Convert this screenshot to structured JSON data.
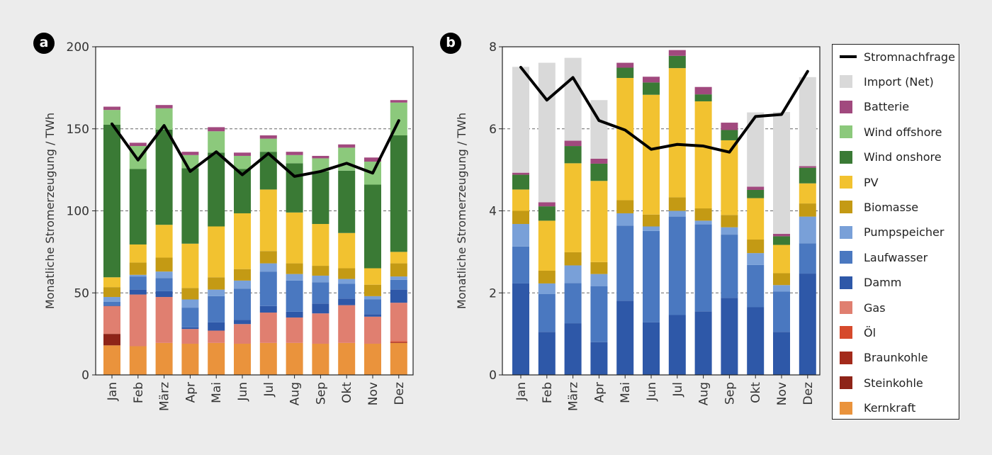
{
  "panels": [
    {
      "badge": "a"
    },
    {
      "badge": "b"
    }
  ],
  "legend": [
    {
      "key": "demand",
      "label": "Stromnachfrage",
      "type": "line",
      "color": "#000000"
    },
    {
      "key": "import",
      "label": "Import (Net)",
      "type": "swatch",
      "color": "#d9d9d9"
    },
    {
      "key": "batterie",
      "label": "Batterie",
      "type": "swatch",
      "color": "#a1497e"
    },
    {
      "key": "wind_offshore",
      "label": "Wind offshore",
      "type": "swatch",
      "color": "#8cc97c"
    },
    {
      "key": "wind_onshore",
      "label": "Wind onshore",
      "type": "swatch",
      "color": "#3a7a35"
    },
    {
      "key": "pv",
      "label": "PV",
      "type": "swatch",
      "color": "#f2c230"
    },
    {
      "key": "biomasse",
      "label": "Biomasse",
      "type": "swatch",
      "color": "#c49a14"
    },
    {
      "key": "pumpspeicher",
      "label": "Pumpspeicher",
      "type": "swatch",
      "color": "#79a0d8"
    },
    {
      "key": "laufwasser",
      "label": "Laufwasser",
      "type": "swatch",
      "color": "#4a78c0"
    },
    {
      "key": "damm",
      "label": "Damm",
      "type": "swatch",
      "color": "#2e58a8"
    },
    {
      "key": "gas",
      "label": "Gas",
      "type": "swatch",
      "color": "#e07f70"
    },
    {
      "key": "oel",
      "label": "Öl",
      "type": "swatch",
      "color": "#d64a2c"
    },
    {
      "key": "braunkohle",
      "label": "Braunkohle",
      "type": "swatch",
      "color": "#a32a1b"
    },
    {
      "key": "steinkohle",
      "label": "Steinkohle",
      "type": "swatch",
      "color": "#8e2418"
    },
    {
      "key": "kernkraft",
      "label": "Kernkraft",
      "type": "swatch",
      "color": "#ea933c"
    }
  ],
  "chart_data": [
    {
      "type": "bar",
      "stacked": true,
      "ylabel": "Monatliche Stromerzeugung / TWh",
      "ylim": [
        0,
        200
      ],
      "yticks": [
        0,
        50,
        100,
        150,
        200
      ],
      "grid": "horizontal dashed",
      "categories": [
        "Jan",
        "Feb",
        "März",
        "Apr",
        "Mai",
        "Jun",
        "Jul",
        "Aug",
        "Sep",
        "Okt",
        "Nov",
        "Dez"
      ],
      "series": [
        {
          "key": "kernkraft",
          "values": [
            18,
            17.5,
            19.5,
            19,
            19.5,
            19,
            19.5,
            19.5,
            19,
            19.5,
            19,
            19.5
          ]
        },
        {
          "key": "steinkohle",
          "values": [
            7,
            0,
            0,
            0,
            0,
            0,
            0,
            0,
            0,
            0,
            0,
            0
          ]
        },
        {
          "key": "braunkohle",
          "values": [
            0,
            0,
            0,
            0,
            0,
            0,
            0,
            0,
            0,
            0,
            0,
            0.5
          ]
        },
        {
          "key": "oel",
          "values": [
            0,
            0,
            0,
            0,
            0,
            0,
            0,
            0,
            0,
            0,
            0,
            0.5
          ]
        },
        {
          "key": "gas",
          "values": [
            17,
            31.5,
            28,
            9,
            7.5,
            12,
            18.5,
            15.5,
            18.5,
            23,
            16.5,
            23.5
          ]
        },
        {
          "key": "damm",
          "values": [
            0.5,
            3,
            3.5,
            1,
            5,
            2.5,
            4,
            3.5,
            6,
            4,
            1.5,
            8
          ]
        },
        {
          "key": "laufwasser",
          "values": [
            2,
            8,
            8,
            12,
            16,
            19,
            21,
            19,
            13,
            9,
            9,
            6
          ]
        },
        {
          "key": "pumpspeicher",
          "values": [
            3,
            1,
            4,
            5,
            4,
            5,
            5,
            4,
            4,
            3,
            2,
            2
          ]
        },
        {
          "key": "biomasse",
          "values": [
            6,
            7.5,
            8.5,
            7,
            7.5,
            7,
            7.5,
            6.5,
            6,
            6.5,
            7,
            8
          ]
        },
        {
          "key": "pv",
          "values": [
            6,
            11,
            20,
            27,
            31,
            34,
            37.5,
            31,
            25.5,
            21.5,
            10,
            7
          ]
        },
        {
          "key": "wind_onshore",
          "values": [
            93,
            46,
            58,
            46,
            45,
            27,
            23,
            30,
            32,
            38,
            51,
            71
          ]
        },
        {
          "key": "wind_offshore",
          "values": [
            9,
            14,
            13,
            8,
            13,
            8,
            8,
            5,
            8,
            14,
            14,
            20
          ]
        },
        {
          "key": "batterie",
          "values": [
            2,
            2,
            2,
            2,
            2.5,
            2,
            2,
            2,
            1.5,
            2,
            2.5,
            1.5
          ]
        }
      ],
      "demand": [
        153,
        131,
        152,
        124,
        136,
        122,
        135,
        121,
        124,
        129,
        123,
        155
      ]
    },
    {
      "type": "bar",
      "stacked": true,
      "ylabel": "Monatliche Stromerzeugung / TWh",
      "ylim": [
        0,
        8
      ],
      "yticks": [
        0,
        2,
        4,
        6,
        8
      ],
      "grid": "horizontal dashed",
      "categories": [
        "Jan",
        "Feb",
        "März",
        "Apr",
        "Mai",
        "Jun",
        "Jul",
        "Aug",
        "Sep",
        "Okt",
        "Nov",
        "Dez"
      ],
      "series": [
        {
          "key": "damm",
          "values": [
            2.23,
            1.05,
            1.26,
            0.8,
            1.81,
            1.28,
            1.46,
            1.55,
            1.88,
            1.65,
            1.05,
            2.47
          ]
        },
        {
          "key": "laufwasser",
          "values": [
            0.9,
            0.92,
            0.98,
            1.36,
            1.83,
            2.23,
            2.4,
            2.12,
            1.54,
            1.03,
            0.98,
            0.74
          ]
        },
        {
          "key": "pumpspeicher",
          "values": [
            0.55,
            0.26,
            0.43,
            0.3,
            0.3,
            0.11,
            0.14,
            0.09,
            0.18,
            0.29,
            0.16,
            0.65
          ]
        },
        {
          "key": "biomasse",
          "values": [
            0.32,
            0.31,
            0.32,
            0.29,
            0.32,
            0.29,
            0.33,
            0.3,
            0.3,
            0.33,
            0.29,
            0.32
          ]
        },
        {
          "key": "pv",
          "values": [
            0.52,
            1.22,
            2.17,
            1.98,
            2.98,
            2.92,
            3.15,
            2.61,
            1.82,
            1.01,
            0.69,
            0.49
          ]
        },
        {
          "key": "wind_onshore",
          "values": [
            0.36,
            0.35,
            0.42,
            0.42,
            0.25,
            0.3,
            0.3,
            0.17,
            0.25,
            0.2,
            0.21,
            0.38
          ]
        },
        {
          "key": "batterie",
          "values": [
            0.05,
            0.1,
            0.13,
            0.12,
            0.12,
            0.14,
            0.14,
            0.18,
            0.18,
            0.08,
            0.06,
            0.04
          ]
        },
        {
          "key": "import",
          "values": [
            2.58,
            3.4,
            2.02,
            1.43,
            0,
            0,
            0,
            0,
            0,
            1.81,
            2.97,
            2.17
          ]
        }
      ],
      "demand": [
        7.5,
        6.7,
        7.25,
        6.2,
        5.97,
        5.5,
        5.62,
        5.58,
        5.43,
        6.3,
        6.35,
        7.4
      ]
    }
  ]
}
